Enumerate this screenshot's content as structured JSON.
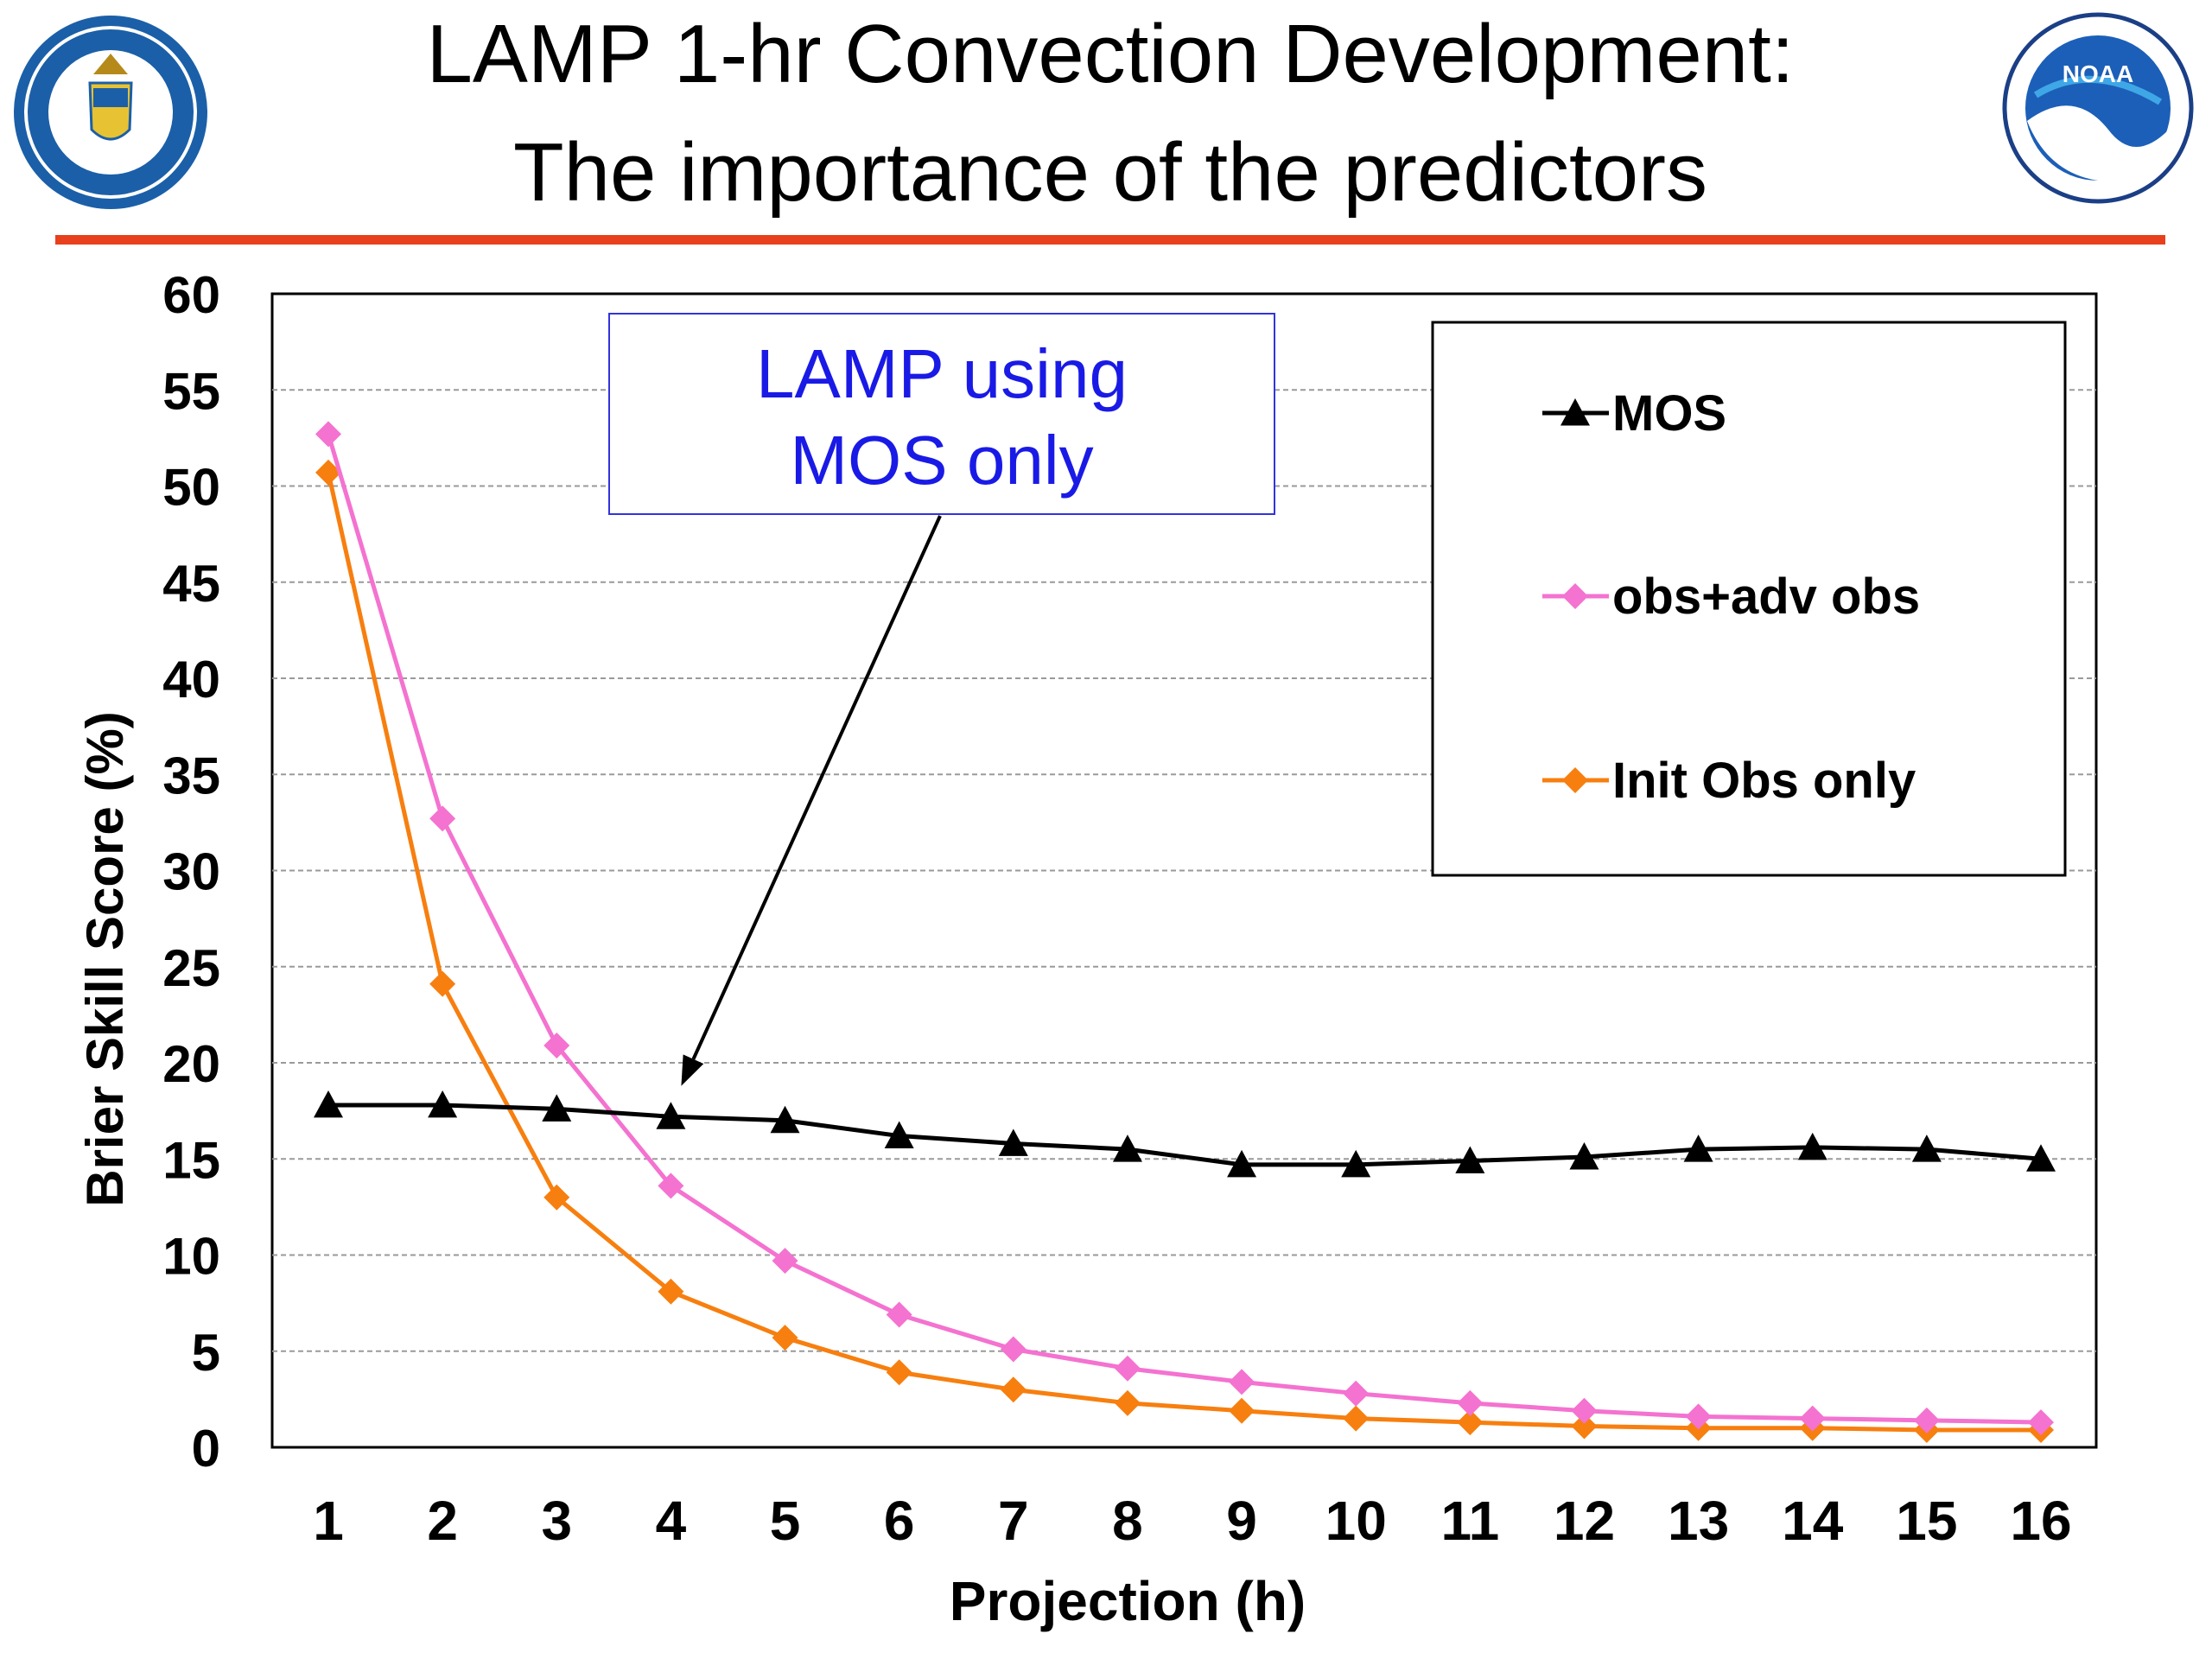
{
  "page": {
    "title_line1": "LAMP 1-hr Convection Development:",
    "title_line2": "The importance of the predictors",
    "accent_color": "#e8401c",
    "logo_left_icon": "department-of-commerce-seal",
    "logo_right_icon": "noaa-logo"
  },
  "chart_data": {
    "type": "line",
    "xlabel": "Projection  (h)",
    "ylabel": "Brier Skill Score  (%)",
    "ylim": [
      0,
      60
    ],
    "yticks": [
      0,
      5,
      10,
      15,
      20,
      25,
      30,
      35,
      40,
      45,
      50,
      55,
      60
    ],
    "x": [
      1,
      2,
      3,
      4,
      5,
      6,
      7,
      8,
      9,
      10,
      11,
      12,
      13,
      14,
      15,
      16
    ],
    "grid": true,
    "legend_position": "top-right",
    "series": [
      {
        "name": "MOS",
        "color": "#000000",
        "marker": "triangle",
        "values": [
          17.8,
          17.8,
          17.6,
          17.2,
          17.0,
          16.2,
          15.8,
          15.5,
          14.7,
          14.7,
          14.9,
          15.1,
          15.5,
          15.6,
          15.5,
          15.0
        ]
      },
      {
        "name": "obs+adv obs",
        "color": "#f472d0",
        "marker": "diamond",
        "values": [
          52.7,
          32.7,
          20.9,
          13.6,
          9.7,
          6.9,
          5.1,
          4.1,
          3.4,
          2.8,
          2.3,
          1.9,
          1.6,
          1.5,
          1.4,
          1.3
        ]
      },
      {
        "name": "Init Obs only",
        "color": "#f77f0f",
        "marker": "diamond",
        "values": [
          50.7,
          24.1,
          13.0,
          8.1,
          5.7,
          3.9,
          3.0,
          2.3,
          1.9,
          1.5,
          1.3,
          1.1,
          1.0,
          1.0,
          0.9,
          0.9
        ]
      }
    ],
    "annotation": {
      "line1": "LAMP using",
      "line2": "MOS only",
      "color": "#1a1ae6",
      "arrow_target_x": 4,
      "arrow_target_y": 18.8
    }
  }
}
